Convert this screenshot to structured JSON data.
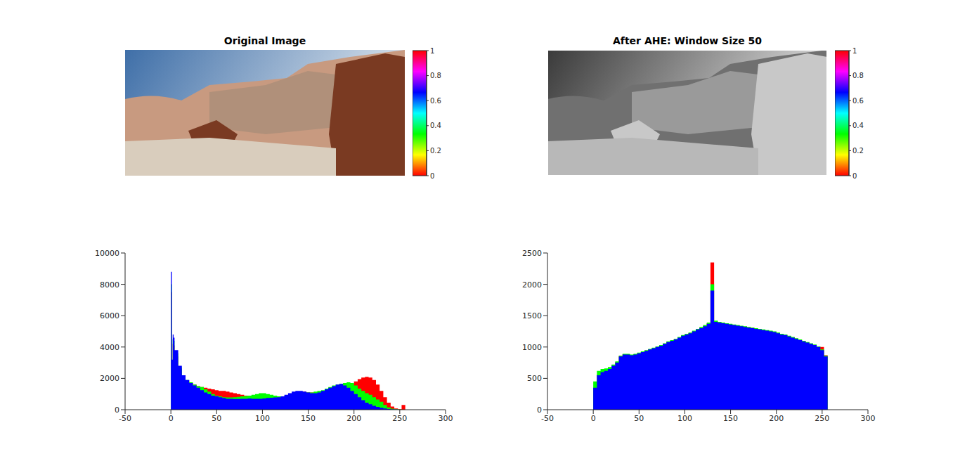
{
  "chart_data": [
    {
      "type": "image",
      "title": "Original Image",
      "colorbar": {
        "range": [
          0,
          1
        ],
        "ticks": [
          0,
          0.2,
          0.4,
          0.6,
          0.8,
          1
        ]
      }
    },
    {
      "type": "image",
      "title": "After AHE: Window Size 50",
      "colorbar": {
        "range": [
          0,
          1
        ],
        "ticks": [
          0,
          0.2,
          0.4,
          0.6,
          0.8,
          1
        ]
      }
    },
    {
      "type": "histogram",
      "bins": [
        0,
        1,
        2,
        3,
        4,
        8,
        12,
        16,
        20,
        24,
        28,
        32,
        36,
        40,
        44,
        48,
        52,
        56,
        60,
        64,
        68,
        72,
        76,
        80,
        84,
        88,
        92,
        96,
        100,
        104,
        108,
        112,
        116,
        120,
        124,
        128,
        132,
        136,
        140,
        144,
        148,
        152,
        156,
        160,
        164,
        168,
        172,
        176,
        180,
        184,
        188,
        192,
        196,
        200,
        204,
        208,
        212,
        216,
        220,
        224,
        228,
        232,
        236,
        240,
        244,
        248,
        252,
        256
      ],
      "series": [
        {
          "color": "#ff0000",
          "values": [
            7500,
            2800,
            4200,
            4100,
            3400,
            2600,
            2100,
            1850,
            1700,
            1600,
            1500,
            1450,
            1400,
            1350,
            1300,
            1250,
            1200,
            1200,
            1150,
            1100,
            1050,
            1000,
            950,
            900,
            880,
            850,
            850,
            850,
            850,
            850,
            830,
            800,
            800,
            820,
            880,
            950,
            1050,
            1100,
            1150,
            1150,
            1100,
            1100,
            1100,
            1150,
            1200,
            1250,
            1300,
            1350,
            1400,
            1450,
            1500,
            1550,
            1650,
            1800,
            1950,
            2050,
            2100,
            2050,
            1900,
            1600,
            1200,
            800,
            450,
            200,
            80,
            30,
            300
          ]
        },
        {
          "color": "#00ff00",
          "values": [
            8000,
            3000,
            4500,
            4400,
            3600,
            2700,
            2150,
            1900,
            1750,
            1600,
            1500,
            1450,
            1300,
            1150,
            1000,
            900,
            850,
            800,
            780,
            780,
            800,
            820,
            850,
            880,
            900,
            950,
            1000,
            1050,
            1050,
            1000,
            950,
            900,
            850,
            850,
            900,
            950,
            1000,
            1050,
            1100,
            1100,
            1100,
            1100,
            1150,
            1200,
            1250,
            1350,
            1450,
            1550,
            1600,
            1650,
            1700,
            1750,
            1700,
            1550,
            1350,
            1200,
            1050,
            950,
            800,
            650,
            500,
            300,
            150,
            70,
            30,
            10,
            0
          ]
        },
        {
          "color": "#0000ff",
          "values": [
            8800,
            3200,
            4800,
            4600,
            3800,
            2800,
            2200,
            1900,
            1700,
            1550,
            1400,
            1250,
            1100,
            1000,
            900,
            850,
            800,
            750,
            700,
            700,
            680,
            680,
            700,
            700,
            720,
            700,
            700,
            700,
            720,
            750,
            760,
            780,
            800,
            850,
            950,
            1050,
            1150,
            1200,
            1200,
            1150,
            1100,
            1050,
            1050,
            1100,
            1200,
            1300,
            1400,
            1500,
            1600,
            1650,
            1550,
            1400,
            1200,
            1000,
            800,
            600,
            450,
            350,
            250,
            180,
            120,
            80,
            40,
            20,
            10,
            0,
            0
          ]
        }
      ],
      "xlim": [
        -50,
        300
      ],
      "xticks": [
        -50,
        0,
        50,
        100,
        150,
        200,
        250,
        300
      ],
      "ylim": [
        0,
        10000
      ],
      "yticks": [
        0,
        2000,
        4000,
        6000,
        8000,
        10000
      ]
    },
    {
      "type": "histogram",
      "bins": [
        0,
        4,
        8,
        12,
        16,
        20,
        24,
        28,
        32,
        36,
        40,
        44,
        48,
        52,
        56,
        60,
        64,
        68,
        72,
        76,
        80,
        84,
        88,
        92,
        96,
        100,
        104,
        108,
        112,
        116,
        120,
        124,
        128,
        132,
        136,
        140,
        144,
        148,
        152,
        156,
        160,
        164,
        168,
        172,
        176,
        180,
        184,
        188,
        192,
        196,
        200,
        204,
        208,
        212,
        216,
        220,
        224,
        228,
        232,
        236,
        240,
        244,
        248,
        252,
        256
      ],
      "series": [
        {
          "color": "#ff0000",
          "values": [
            300,
            560,
            610,
            630,
            660,
            710,
            760,
            860,
            885,
            885,
            875,
            885,
            905,
            925,
            945,
            965,
            985,
            1005,
            1025,
            1055,
            1085,
            1105,
            1125,
            1155,
            1185,
            1205,
            1225,
            1255,
            1285,
            1310,
            1340,
            1380,
            2350,
            1410,
            1395,
            1385,
            1375,
            1365,
            1355,
            1345,
            1335,
            1325,
            1315,
            1305,
            1295,
            1285,
            1275,
            1265,
            1255,
            1245,
            1225,
            1205,
            1195,
            1175,
            1155,
            1135,
            1115,
            1095,
            1075,
            1055,
            1035,
            1005,
            1000,
            870
          ]
        },
        {
          "color": "#00ff00",
          "values": [
            450,
            620,
            650,
            660,
            680,
            720,
            770,
            860,
            890,
            890,
            880,
            890,
            910,
            930,
            950,
            970,
            990,
            1010,
            1030,
            1060,
            1090,
            1110,
            1130,
            1160,
            1190,
            1210,
            1230,
            1260,
            1290,
            1320,
            1350,
            1390,
            2000,
            1420,
            1400,
            1390,
            1380,
            1370,
            1360,
            1350,
            1340,
            1330,
            1320,
            1310,
            1300,
            1290,
            1280,
            1270,
            1260,
            1250,
            1230,
            1210,
            1200,
            1180,
            1160,
            1140,
            1120,
            1100,
            1080,
            1060,
            1040,
            1010,
            960,
            860
          ]
        },
        {
          "color": "#0000ff",
          "values": [
            350,
            550,
            600,
            620,
            650,
            700,
            750,
            850,
            880,
            880,
            870,
            880,
            900,
            920,
            940,
            960,
            980,
            1000,
            1020,
            1050,
            1080,
            1100,
            1120,
            1150,
            1180,
            1200,
            1220,
            1250,
            1280,
            1300,
            1330,
            1370,
            1900,
            1400,
            1390,
            1380,
            1370,
            1360,
            1350,
            1340,
            1330,
            1320,
            1310,
            1300,
            1290,
            1280,
            1270,
            1260,
            1250,
            1240,
            1220,
            1200,
            1190,
            1170,
            1150,
            1130,
            1110,
            1090,
            1070,
            1050,
            1030,
            1000,
            950,
            850
          ]
        }
      ],
      "xlim": [
        -50,
        300
      ],
      "xticks": [
        -50,
        0,
        50,
        100,
        150,
        200,
        250,
        300
      ],
      "ylim": [
        0,
        2500
      ],
      "yticks": [
        0,
        500,
        1000,
        1500,
        2000,
        2500
      ]
    }
  ]
}
